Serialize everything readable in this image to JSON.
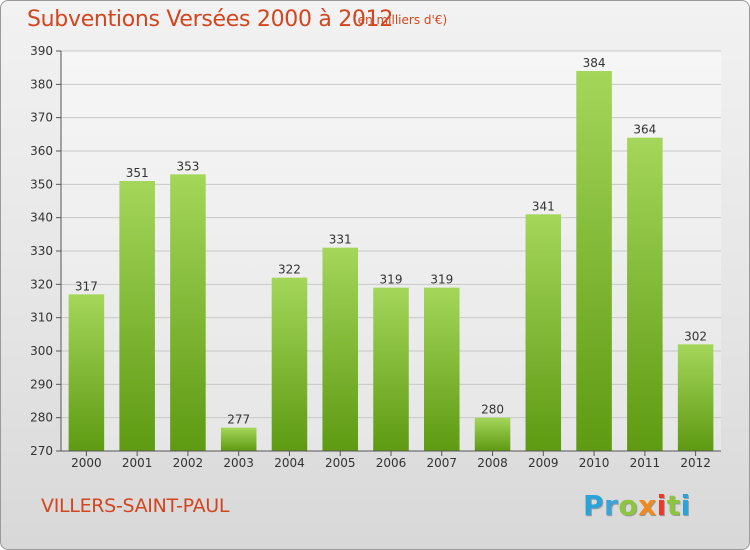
{
  "header": {
    "title": "Subventions Versées 2000 à 2012",
    "subtitle": "(en milliers d'€)"
  },
  "footer": {
    "commune": "VILLERS-SAINT-PAUL",
    "brand_letters": [
      "P",
      "r",
      "o",
      "x",
      "i",
      "t",
      "i"
    ]
  },
  "colors": {
    "title": "#d2451e",
    "bar_top": "#a4d65a",
    "bar_bottom": "#5e9a12",
    "grid": "#c8c8c8"
  },
  "chart_data": {
    "type": "bar",
    "title": "Subventions Versées 2000 à 2012",
    "subtitle": "(en milliers d'€)",
    "categories": [
      "2000",
      "2001",
      "2002",
      "2003",
      "2004",
      "2005",
      "2006",
      "2007",
      "2008",
      "2009",
      "2010",
      "2011",
      "2012"
    ],
    "values": [
      317,
      351,
      353,
      277,
      322,
      331,
      319,
      319,
      280,
      341,
      384,
      364,
      302
    ],
    "xlabel": "",
    "ylabel": "",
    "ylim": [
      270,
      390
    ],
    "yticks": [
      270,
      280,
      290,
      300,
      310,
      320,
      330,
      340,
      350,
      360,
      370,
      380,
      390
    ],
    "grid": true,
    "data_labels": true
  }
}
